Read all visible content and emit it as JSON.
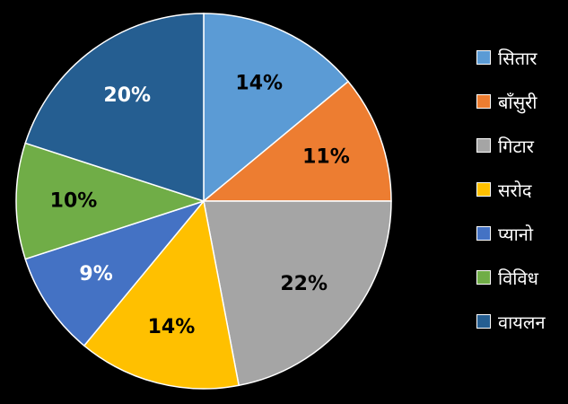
{
  "chart_data": {
    "type": "pie",
    "title": "",
    "categories": [
      "सितार",
      "बाँसुरी",
      "गिटार",
      "सरोद",
      "प्यानो",
      "विविध",
      "वायलन"
    ],
    "values": [
      14,
      11,
      22,
      14,
      9,
      10,
      20
    ],
    "labels": [
      "14%",
      "11%",
      "22%",
      "14%",
      "9%",
      "10%",
      "20%"
    ],
    "colors": [
      "#5b9bd5",
      "#ed7d31",
      "#a5a5a5",
      "#ffc000",
      "#4472c4",
      "#70ad47",
      "#255e91"
    ],
    "label_colors": [
      "#000000",
      "#000000",
      "#000000",
      "#000000",
      "#ffffff",
      "#000000",
      "#ffffff"
    ],
    "legend_position": "right",
    "start_angle": "12 o'clock, clockwise"
  }
}
